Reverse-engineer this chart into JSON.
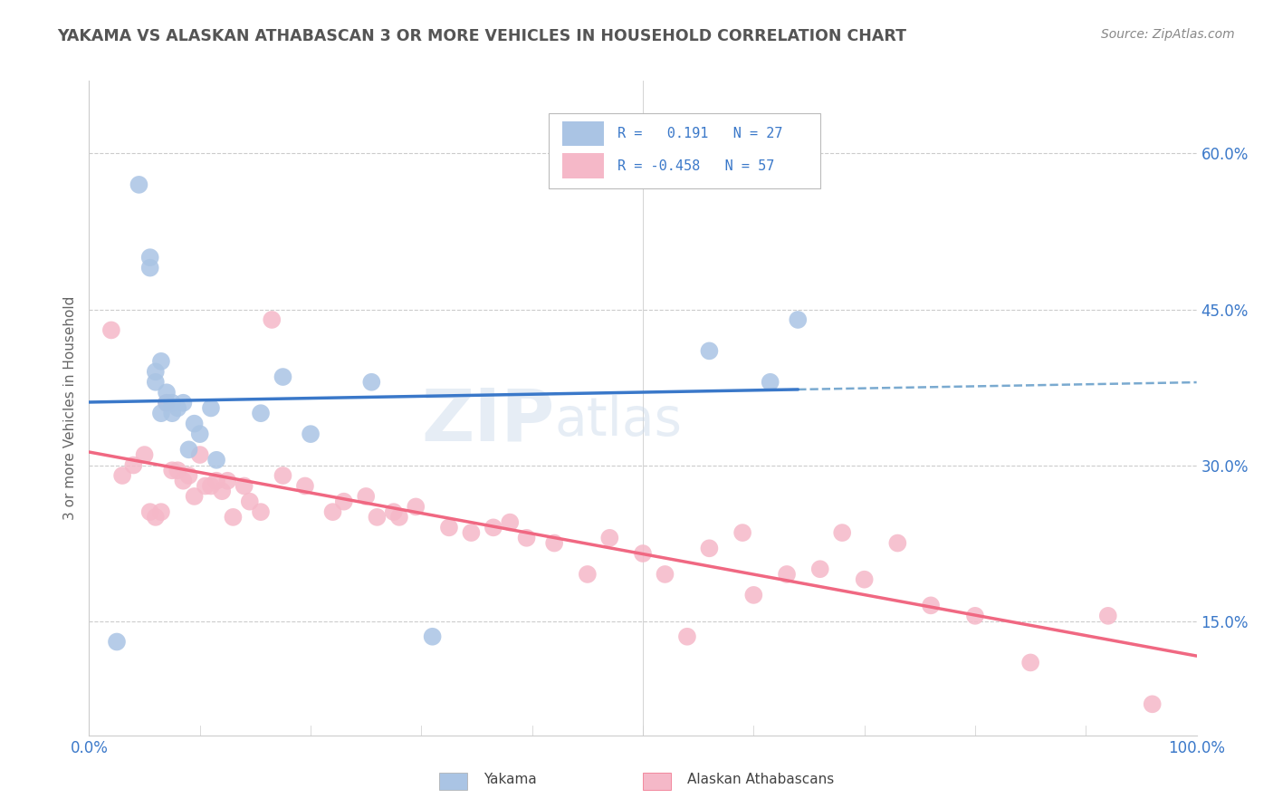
{
  "title": "YAKAMA VS ALASKAN ATHABASCAN 3 OR MORE VEHICLES IN HOUSEHOLD CORRELATION CHART",
  "source": "Source: ZipAtlas.com",
  "ylabel": "3 or more Vehicles in Household",
  "xmin": 0.0,
  "xmax": 1.0,
  "ymin": 0.04,
  "ymax": 0.67,
  "watermark_line1": "ZIP",
  "watermark_line2": "atlas",
  "legend_r1": "R =  0.191   N = 27",
  "legend_r2": "R = -0.458   N = 57",
  "yakama_color": "#aac4e4",
  "athabascan_color": "#f5b8c8",
  "yakama_line_color": "#3a78c9",
  "athabascan_line_color": "#f06882",
  "dashed_line_color": "#7aaad0",
  "legend_label1": "Yakama",
  "legend_label2": "Alaskan Athabascans",
  "title_color": "#555555",
  "source_color": "#888888",
  "axis_label_color": "#3a78c9",
  "grid_color": "#cccccc",
  "yakama_x": [
    0.025,
    0.045,
    0.055,
    0.055,
    0.06,
    0.06,
    0.065,
    0.065,
    0.07,
    0.07,
    0.075,
    0.075,
    0.08,
    0.085,
    0.09,
    0.095,
    0.1,
    0.11,
    0.115,
    0.155,
    0.175,
    0.2,
    0.255,
    0.31,
    0.56,
    0.615,
    0.64
  ],
  "yakama_y": [
    0.13,
    0.57,
    0.49,
    0.5,
    0.38,
    0.39,
    0.4,
    0.35,
    0.36,
    0.37,
    0.35,
    0.36,
    0.355,
    0.36,
    0.315,
    0.34,
    0.33,
    0.355,
    0.305,
    0.35,
    0.385,
    0.33,
    0.38,
    0.135,
    0.41,
    0.38,
    0.44
  ],
  "athabascan_x": [
    0.02,
    0.03,
    0.04,
    0.05,
    0.055,
    0.06,
    0.065,
    0.07,
    0.075,
    0.08,
    0.085,
    0.09,
    0.095,
    0.1,
    0.105,
    0.11,
    0.115,
    0.12,
    0.125,
    0.13,
    0.14,
    0.145,
    0.155,
    0.165,
    0.175,
    0.195,
    0.22,
    0.23,
    0.25,
    0.26,
    0.275,
    0.28,
    0.295,
    0.325,
    0.345,
    0.365,
    0.38,
    0.395,
    0.42,
    0.45,
    0.47,
    0.5,
    0.52,
    0.54,
    0.56,
    0.59,
    0.6,
    0.63,
    0.66,
    0.68,
    0.7,
    0.73,
    0.76,
    0.8,
    0.85,
    0.92,
    0.96
  ],
  "athabascan_y": [
    0.43,
    0.29,
    0.3,
    0.31,
    0.255,
    0.25,
    0.255,
    0.36,
    0.295,
    0.295,
    0.285,
    0.29,
    0.27,
    0.31,
    0.28,
    0.28,
    0.285,
    0.275,
    0.285,
    0.25,
    0.28,
    0.265,
    0.255,
    0.44,
    0.29,
    0.28,
    0.255,
    0.265,
    0.27,
    0.25,
    0.255,
    0.25,
    0.26,
    0.24,
    0.235,
    0.24,
    0.245,
    0.23,
    0.225,
    0.195,
    0.23,
    0.215,
    0.195,
    0.135,
    0.22,
    0.235,
    0.175,
    0.195,
    0.2,
    0.235,
    0.19,
    0.225,
    0.165,
    0.155,
    0.11,
    0.155,
    0.07
  ],
  "ytick_vals": [
    0.15,
    0.3,
    0.45,
    0.6
  ],
  "ytick_labels": [
    "15.0%",
    "30.0%",
    "45.0%",
    "60.0%"
  ]
}
